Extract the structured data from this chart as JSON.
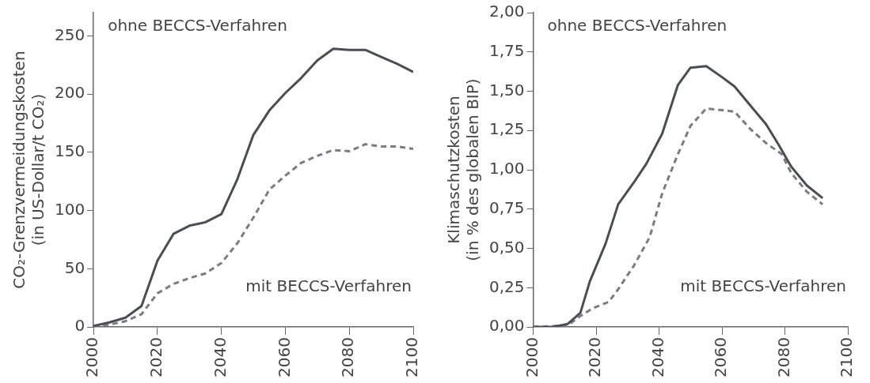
{
  "chart_data": [
    {
      "type": "line",
      "ylabel": "CO₂-Grenzvermeidungskosten\n(in US-Dollar/t CO₂)",
      "xlim": [
        2000,
        2100
      ],
      "xticks": [
        2000,
        2020,
        2040,
        2060,
        2080,
        2100
      ],
      "ylim": [
        0,
        270
      ],
      "yticks": [
        0,
        50,
        100,
        150,
        200,
        250
      ],
      "grid": false,
      "legend": false,
      "marker": "none",
      "series": [
        {
          "name": "ohne BECCS-Verfahren",
          "color": "#4a4d52",
          "line_style": "solid",
          "x": [
            2000,
            2005,
            2010,
            2015,
            2020,
            2025,
            2030,
            2035,
            2040,
            2045,
            2050,
            2055,
            2060,
            2065,
            2070,
            2075,
            2080,
            2085,
            2090,
            2095,
            2100
          ],
          "values": [
            1,
            4,
            8,
            18,
            57,
            80,
            87,
            90,
            97,
            127,
            165,
            186,
            201,
            214,
            229,
            239,
            238,
            238,
            232,
            226,
            219
          ]
        },
        {
          "name": "mit BECCS-Verfahren",
          "color": "#7a7c82",
          "line_style": "dashed",
          "x": [
            2000,
            2005,
            2010,
            2015,
            2020,
            2025,
            2030,
            2035,
            2040,
            2045,
            2050,
            2055,
            2060,
            2065,
            2070,
            2075,
            2080,
            2085,
            2090,
            2095,
            2100
          ],
          "values": [
            1,
            2,
            5,
            11,
            29,
            37,
            42,
            46,
            55,
            72,
            94,
            118,
            130,
            141,
            147,
            152,
            151,
            157,
            155,
            155,
            153
          ]
        }
      ]
    },
    {
      "type": "line",
      "ylabel": "Klimaschutzkosten\n(in % des globalen BIP)",
      "xlim": [
        2000,
        2100
      ],
      "xticks": [
        2000,
        2020,
        2040,
        2060,
        2080,
        2100
      ],
      "ylim": [
        0,
        2
      ],
      "yticks": [
        {
          "value": 0,
          "label": "0,00"
        },
        {
          "value": 0.25,
          "label": "0,25"
        },
        {
          "value": 0.5,
          "label": "0,50"
        },
        {
          "value": 0.75,
          "label": "0,75"
        },
        {
          "value": 1,
          "label": "1,00"
        },
        {
          "value": 1.25,
          "label": "1,25"
        },
        {
          "value": 1.5,
          "label": "1,50"
        },
        {
          "value": 1.75,
          "label": "1,75"
        },
        {
          "value": 2,
          "label": "2,00"
        }
      ],
      "grid": false,
      "legend": false,
      "marker": "none",
      "series": [
        {
          "name": "ohne BECCS-Verfahren",
          "color": "#4a4d52",
          "line_style": "solid",
          "x": [
            2000,
            2006,
            2011,
            2015,
            2018,
            2023,
            2027,
            2032,
            2036,
            2041,
            2046,
            2050,
            2055,
            2060,
            2064,
            2069,
            2074,
            2078,
            2082,
            2087,
            2092
          ],
          "values": [
            0,
            0,
            0.02,
            0.09,
            0.29,
            0.53,
            0.78,
            0.92,
            1.04,
            1.23,
            1.54,
            1.65,
            1.66,
            1.59,
            1.53,
            1.41,
            1.29,
            1.16,
            1.02,
            0.9,
            0.82
          ]
        },
        {
          "name": "mit BECCS-Verfahren",
          "color": "#7a7c82",
          "line_style": "dashed",
          "x": [
            2000,
            2011,
            2015,
            2019,
            2024,
            2027,
            2032,
            2037,
            2041,
            2046,
            2050,
            2055,
            2060,
            2064,
            2069,
            2074,
            2079,
            2082,
            2087,
            2092
          ],
          "values": [
            0,
            0.01,
            0.07,
            0.12,
            0.16,
            0.24,
            0.39,
            0.57,
            0.85,
            1.1,
            1.28,
            1.39,
            1.38,
            1.37,
            1.26,
            1.17,
            1.1,
            0.98,
            0.86,
            0.78
          ]
        }
      ]
    }
  ]
}
